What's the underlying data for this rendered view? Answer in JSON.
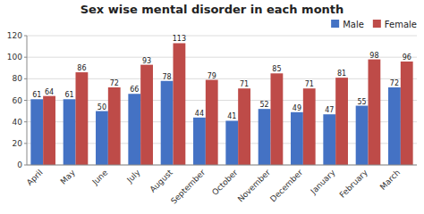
{
  "chart_data": {
    "type": "bar",
    "title": "Sex wise mental disorder in each month",
    "categories": [
      "April",
      "May",
      "June",
      "July",
      "August",
      "September",
      "October",
      "November",
      "December",
      "January",
      "February",
      "March"
    ],
    "series": [
      {
        "name": "Male",
        "color": "#4472C4",
        "values": [
          61,
          61,
          50,
          66,
          78,
          44,
          41,
          52,
          49,
          47,
          55,
          72
        ]
      },
      {
        "name": "Female",
        "color": "#BE4B48",
        "values": [
          64,
          86,
          72,
          93,
          113,
          79,
          71,
          85,
          71,
          81,
          98,
          96
        ]
      }
    ],
    "ylim": [
      0,
      120
    ],
    "yticks": [
      0,
      20,
      40,
      60,
      80,
      100,
      120
    ],
    "grid": true,
    "legend": "upper right",
    "data_labels": true
  }
}
